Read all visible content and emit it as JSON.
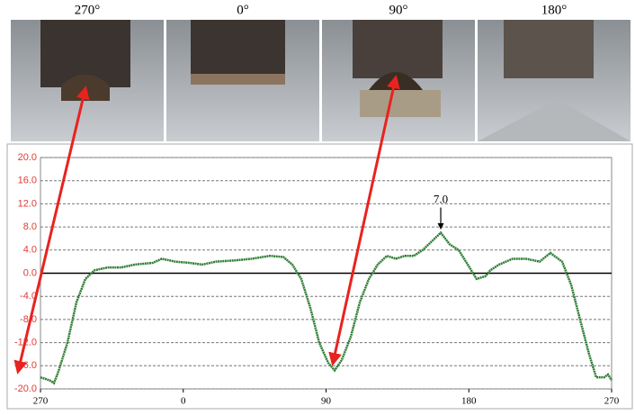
{
  "photo_labels": [
    "270°",
    "0°",
    "90°",
    "180°"
  ],
  "chart_data": {
    "type": "line",
    "x": [
      0,
      5.7,
      8.5,
      11.3,
      17,
      22.7,
      28.3,
      34,
      42.5,
      51,
      59.5,
      70.9,
      76.5,
      85,
      93.5,
      102,
      110.6,
      121.9,
      133.2,
      144.6,
      153.1,
      158.7,
      164.4,
      170.1,
      175.7,
      181.4,
      185.4,
      189.9,
      195.6,
      201.3,
      207,
      212.6,
      218.3,
      224,
      229.6,
      235.3,
      240.9,
      246.6,
      252.3,
      257.9,
      263.6,
      269.3,
      274.9,
      280.6,
      283.5,
      289.1,
      297.6,
      306.1,
      314.6,
      321.4,
      328.8,
      334.5,
      340.1,
      345.8,
      350.3,
      355.4,
      357.7,
      360
    ],
    "series": [
      {
        "color": "#2e7d32",
        "values": [
          -18,
          -18.5,
          -19,
          -17,
          -12,
          -5,
          -1,
          0.5,
          1,
          1,
          1.5,
          1.8,
          2.5,
          2,
          1.8,
          1.5,
          2,
          2.2,
          2.5,
          3,
          2.8,
          1.5,
          -1,
          -6,
          -12,
          -15.5,
          -16.8,
          -15,
          -11,
          -5,
          -1,
          1.5,
          3,
          2.5,
          3,
          3,
          4,
          5.5,
          7,
          5,
          4,
          1.5,
          -1,
          -0.5,
          0.5,
          1.5,
          2.5,
          2.5,
          2,
          3.5,
          2,
          -2,
          -8,
          -14,
          -18,
          -18,
          -17.5,
          -18.5
        ]
      }
    ],
    "xlim": [
      0,
      360
    ],
    "xticks": [
      {
        "value": 0,
        "label": "270"
      },
      {
        "value": 90,
        "label": "0"
      },
      {
        "value": 180,
        "label": "90"
      },
      {
        "value": 270,
        "label": "180"
      },
      {
        "value": 360,
        "label": "270"
      }
    ],
    "ylim": [
      -20,
      20
    ],
    "yticks": [
      {
        "value": -20,
        "label": "-20.0"
      },
      {
        "value": -16,
        "label": "-16.0"
      },
      {
        "value": -12,
        "label": "-12.0"
      },
      {
        "value": -8,
        "label": "-8.0"
      },
      {
        "value": -4,
        "label": "-4.0"
      },
      {
        "value": 0,
        "label": "0.0"
      },
      {
        "value": 4,
        "label": "4.0"
      },
      {
        "value": 8,
        "label": "8.0"
      },
      {
        "value": 12,
        "label": "12.0"
      },
      {
        "value": 16,
        "label": "16.0"
      },
      {
        "value": 20,
        "label": "20.0"
      }
    ],
    "grid": true,
    "annotations": [
      {
        "x": 252.3,
        "value": 7,
        "label": "7.0"
      }
    ]
  }
}
